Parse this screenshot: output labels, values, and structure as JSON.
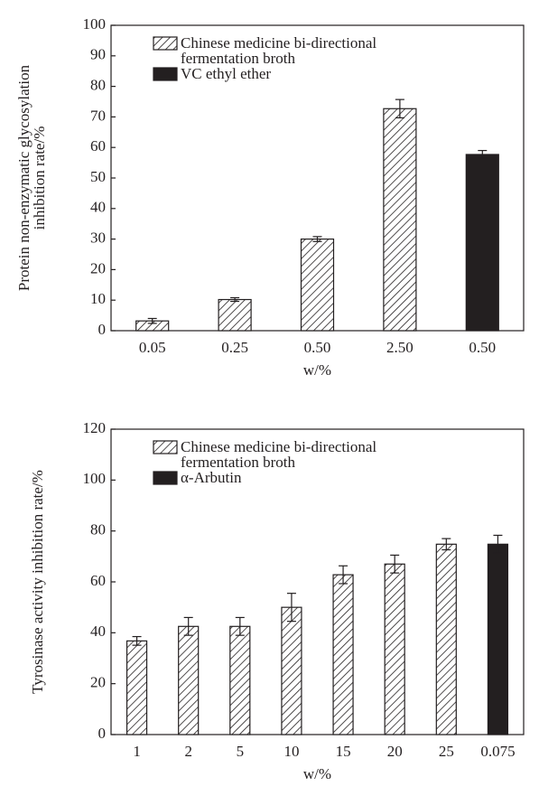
{
  "chart_data": [
    {
      "type": "bar",
      "y_label": "Protein non-enzymatic glycosylation inhibition rate/%",
      "x_label": "w/%",
      "categories": [
        "0.05",
        "0.25",
        "0.50",
        "2.50",
        "0.50"
      ],
      "series": [
        {
          "name": "Chinese medicine bi-directional fermentation broth",
          "color": "#231f20",
          "pattern": "hatch",
          "values": [
            3.2,
            10.2,
            30,
            72.7,
            null
          ],
          "errors": [
            0.8,
            0.6,
            0.8,
            3,
            null
          ]
        },
        {
          "name": "VC ethyl ether",
          "color": "#231f20",
          "pattern": "solid",
          "values": [
            null,
            null,
            null,
            null,
            57.7
          ],
          "errors": [
            null,
            null,
            null,
            null,
            1.3
          ]
        }
      ],
      "ylim": [
        0,
        100
      ],
      "yticks": [
        0,
        10,
        20,
        30,
        40,
        50,
        60,
        70,
        80,
        90,
        100
      ],
      "grid": false
    },
    {
      "type": "bar",
      "y_label": "Tyrosinase activity inhibition rate/%",
      "x_label": "w/%",
      "categories": [
        "1",
        "2",
        "5",
        "10",
        "15",
        "20",
        "25",
        "0.075"
      ],
      "series": [
        {
          "name": "Chinese medicine bi-directional fermentation broth",
          "color": "#231f20",
          "pattern": "hatch",
          "values": [
            36.8,
            42.5,
            42.5,
            50,
            62.8,
            67,
            74.8,
            null
          ],
          "errors": [
            1.7,
            3.5,
            3.5,
            5.5,
            3.5,
            3.5,
            2.2,
            null
          ]
        },
        {
          "name": "α-Arbutin",
          "color": "#231f20",
          "pattern": "solid",
          "values": [
            null,
            null,
            null,
            null,
            null,
            null,
            null,
            74.8
          ],
          "errors": [
            null,
            null,
            null,
            null,
            null,
            null,
            null,
            3.5
          ]
        }
      ],
      "ylim": [
        0,
        120
      ],
      "yticks": [
        0,
        20,
        40,
        60,
        80,
        100,
        120
      ],
      "grid": false
    }
  ]
}
